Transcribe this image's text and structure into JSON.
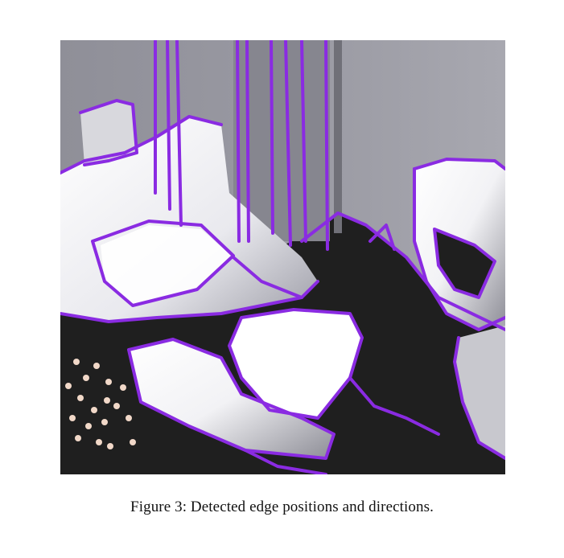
{
  "figure": {
    "caption": "Figure 3: Detected edge positions and directions.",
    "image_semantic": "edge-detection-render",
    "colors": {
      "edge": "#8a2be2",
      "wall": "#97979f",
      "floor": "#1e1e1e",
      "object_highlight": "#ffffff",
      "points": "#f1d8c8"
    }
  }
}
